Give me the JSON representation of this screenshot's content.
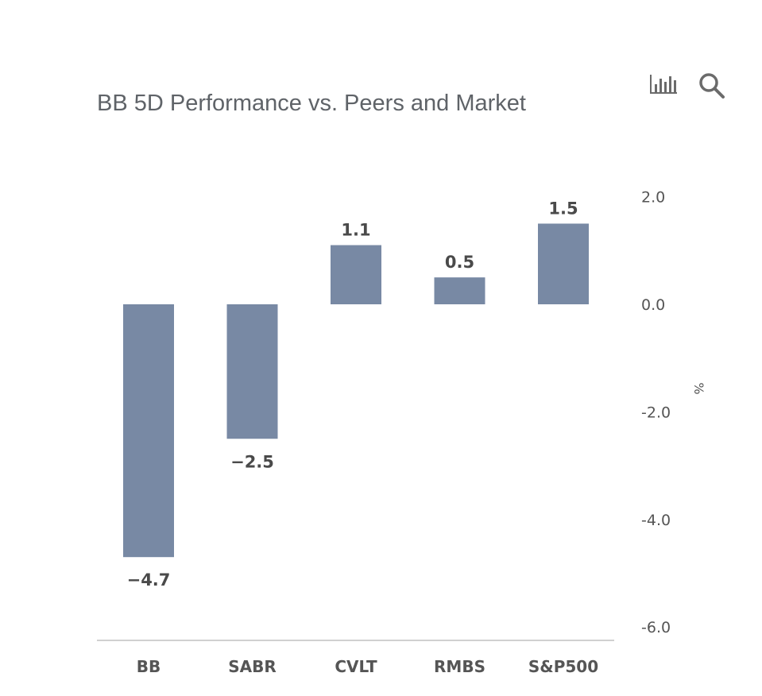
{
  "toolbar": {
    "chart_icon": "bar-chart-icon",
    "search_icon": "search-icon"
  },
  "chart_data": {
    "type": "bar",
    "title": "BB 5D Performance vs. Peers and Market",
    "categories": [
      "BB",
      "SABR",
      "CVLT",
      "RMBS",
      "S&P500"
    ],
    "values": [
      -4.7,
      -2.5,
      1.1,
      0.5,
      1.5
    ],
    "data_labels": [
      "−4.7",
      "−2.5",
      "1.1",
      "0.5",
      "1.5"
    ],
    "ylabel": "%",
    "xlabel": "",
    "ylim": [
      -6.0,
      2.0
    ],
    "y_ticks": [
      2.0,
      0.0,
      -2.0,
      -4.0,
      -6.0
    ],
    "y_tick_labels": [
      "2.0",
      "0.0",
      "-2.0",
      "-4.0",
      "-6.0"
    ],
    "y_axis_side": "right",
    "grid": false,
    "bar_color": "#7889a4"
  }
}
